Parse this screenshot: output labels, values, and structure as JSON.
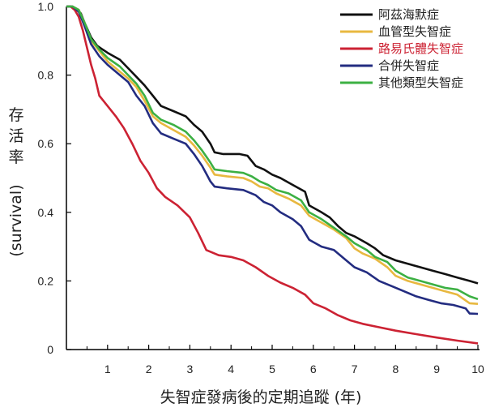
{
  "chart_data": {
    "type": "line",
    "xlabel": "失智症發病後的定期追蹤 (年)",
    "ylabel_cjk": [
      "存",
      "活",
      "率"
    ],
    "ylabel_en": "(survival)",
    "xlim": [
      0,
      10
    ],
    "ylim": [
      0,
      1.0
    ],
    "xticks": [
      "1",
      "2",
      "3",
      "4",
      "5",
      "6",
      "7",
      "8",
      "9",
      "10"
    ],
    "yticks": [
      "0",
      "0.2",
      "0.4",
      "0.6",
      "0.8",
      "1.0"
    ],
    "legend_position": "top-right",
    "series": [
      {
        "name": "阿茲海默症",
        "color": "#111111",
        "points": [
          [
            0,
            1.0
          ],
          [
            0.1,
            1.0
          ],
          [
            0.2,
            0.995
          ],
          [
            0.35,
            0.98
          ],
          [
            0.45,
            0.95
          ],
          [
            0.6,
            0.91
          ],
          [
            0.75,
            0.885
          ],
          [
            1.0,
            0.865
          ],
          [
            1.3,
            0.845
          ],
          [
            1.5,
            0.82
          ],
          [
            1.7,
            0.795
          ],
          [
            1.9,
            0.77
          ],
          [
            2.1,
            0.74
          ],
          [
            2.3,
            0.71
          ],
          [
            2.6,
            0.695
          ],
          [
            2.9,
            0.68
          ],
          [
            3.1,
            0.655
          ],
          [
            3.3,
            0.635
          ],
          [
            3.5,
            0.6
          ],
          [
            3.6,
            0.575
          ],
          [
            3.8,
            0.57
          ],
          [
            4.2,
            0.57
          ],
          [
            4.4,
            0.565
          ],
          [
            4.6,
            0.535
          ],
          [
            4.8,
            0.525
          ],
          [
            5.0,
            0.51
          ],
          [
            5.2,
            0.5
          ],
          [
            5.5,
            0.48
          ],
          [
            5.8,
            0.46
          ],
          [
            5.9,
            0.42
          ],
          [
            6.2,
            0.4
          ],
          [
            6.4,
            0.385
          ],
          [
            6.6,
            0.36
          ],
          [
            6.8,
            0.34
          ],
          [
            7.0,
            0.33
          ],
          [
            7.3,
            0.31
          ],
          [
            7.5,
            0.295
          ],
          [
            7.7,
            0.275
          ],
          [
            8.0,
            0.26
          ],
          [
            8.3,
            0.25
          ],
          [
            8.6,
            0.24
          ],
          [
            8.9,
            0.23
          ],
          [
            9.2,
            0.22
          ],
          [
            9.5,
            0.21
          ],
          [
            9.8,
            0.2
          ],
          [
            10.0,
            0.193
          ]
        ]
      },
      {
        "name": "血管型失智症",
        "color": "#e8b840",
        "points": [
          [
            0,
            1.0
          ],
          [
            0.15,
            1.0
          ],
          [
            0.3,
            0.99
          ],
          [
            0.45,
            0.95
          ],
          [
            0.6,
            0.9
          ],
          [
            0.8,
            0.87
          ],
          [
            1.0,
            0.84
          ],
          [
            1.3,
            0.81
          ],
          [
            1.5,
            0.79
          ],
          [
            1.7,
            0.765
          ],
          [
            1.9,
            0.725
          ],
          [
            2.1,
            0.68
          ],
          [
            2.3,
            0.66
          ],
          [
            2.6,
            0.64
          ],
          [
            2.9,
            0.62
          ],
          [
            3.1,
            0.595
          ],
          [
            3.3,
            0.565
          ],
          [
            3.5,
            0.53
          ],
          [
            3.6,
            0.51
          ],
          [
            3.9,
            0.505
          ],
          [
            4.3,
            0.5
          ],
          [
            4.5,
            0.49
          ],
          [
            4.7,
            0.475
          ],
          [
            4.9,
            0.47
          ],
          [
            5.1,
            0.455
          ],
          [
            5.4,
            0.44
          ],
          [
            5.7,
            0.42
          ],
          [
            5.9,
            0.39
          ],
          [
            6.2,
            0.37
          ],
          [
            6.5,
            0.35
          ],
          [
            6.8,
            0.325
          ],
          [
            7.0,
            0.295
          ],
          [
            7.2,
            0.28
          ],
          [
            7.5,
            0.265
          ],
          [
            7.8,
            0.24
          ],
          [
            8.0,
            0.215
          ],
          [
            8.3,
            0.2
          ],
          [
            8.6,
            0.19
          ],
          [
            8.9,
            0.18
          ],
          [
            9.2,
            0.17
          ],
          [
            9.5,
            0.16
          ],
          [
            9.8,
            0.135
          ],
          [
            10.0,
            0.133
          ]
        ]
      },
      {
        "name": "路易氏體失智症",
        "color": "#cc2233",
        "points": [
          [
            0,
            1.0
          ],
          [
            0.1,
            1.0
          ],
          [
            0.2,
            0.99
          ],
          [
            0.3,
            0.97
          ],
          [
            0.4,
            0.93
          ],
          [
            0.5,
            0.88
          ],
          [
            0.6,
            0.83
          ],
          [
            0.7,
            0.79
          ],
          [
            0.8,
            0.74
          ],
          [
            1.0,
            0.71
          ],
          [
            1.2,
            0.68
          ],
          [
            1.4,
            0.645
          ],
          [
            1.6,
            0.6
          ],
          [
            1.8,
            0.55
          ],
          [
            2.0,
            0.515
          ],
          [
            2.2,
            0.47
          ],
          [
            2.4,
            0.445
          ],
          [
            2.7,
            0.42
          ],
          [
            3.0,
            0.385
          ],
          [
            3.2,
            0.34
          ],
          [
            3.4,
            0.29
          ],
          [
            3.7,
            0.275
          ],
          [
            4.0,
            0.27
          ],
          [
            4.3,
            0.26
          ],
          [
            4.6,
            0.24
          ],
          [
            4.9,
            0.215
          ],
          [
            5.2,
            0.195
          ],
          [
            5.5,
            0.18
          ],
          [
            5.8,
            0.16
          ],
          [
            6.0,
            0.135
          ],
          [
            6.3,
            0.12
          ],
          [
            6.6,
            0.1
          ],
          [
            6.9,
            0.085
          ],
          [
            7.2,
            0.075
          ],
          [
            7.6,
            0.065
          ],
          [
            8.0,
            0.055
          ],
          [
            8.5,
            0.045
          ],
          [
            9.0,
            0.035
          ],
          [
            9.5,
            0.026
          ],
          [
            10.0,
            0.018
          ]
        ]
      },
      {
        "name": "合併失智症",
        "color": "#232c80",
        "points": [
          [
            0,
            1.0
          ],
          [
            0.15,
            1.0
          ],
          [
            0.3,
            0.985
          ],
          [
            0.45,
            0.94
          ],
          [
            0.6,
            0.89
          ],
          [
            0.8,
            0.855
          ],
          [
            1.0,
            0.83
          ],
          [
            1.3,
            0.8
          ],
          [
            1.5,
            0.78
          ],
          [
            1.7,
            0.74
          ],
          [
            1.9,
            0.71
          ],
          [
            2.1,
            0.66
          ],
          [
            2.3,
            0.63
          ],
          [
            2.6,
            0.615
          ],
          [
            2.9,
            0.6
          ],
          [
            3.1,
            0.57
          ],
          [
            3.3,
            0.535
          ],
          [
            3.5,
            0.49
          ],
          [
            3.6,
            0.475
          ],
          [
            3.9,
            0.47
          ],
          [
            4.3,
            0.465
          ],
          [
            4.6,
            0.45
          ],
          [
            4.8,
            0.43
          ],
          [
            5.0,
            0.42
          ],
          [
            5.2,
            0.4
          ],
          [
            5.5,
            0.38
          ],
          [
            5.7,
            0.36
          ],
          [
            5.9,
            0.32
          ],
          [
            6.2,
            0.3
          ],
          [
            6.5,
            0.29
          ],
          [
            6.8,
            0.26
          ],
          [
            7.0,
            0.24
          ],
          [
            7.3,
            0.225
          ],
          [
            7.6,
            0.2
          ],
          [
            7.9,
            0.185
          ],
          [
            8.2,
            0.17
          ],
          [
            8.5,
            0.155
          ],
          [
            8.8,
            0.145
          ],
          [
            9.1,
            0.135
          ],
          [
            9.4,
            0.13
          ],
          [
            9.7,
            0.12
          ],
          [
            9.8,
            0.105
          ],
          [
            10.0,
            0.104
          ]
        ]
      },
      {
        "name": "其他類型失智症",
        "color": "#3cb043",
        "points": [
          [
            0,
            1.0
          ],
          [
            0.15,
            1.0
          ],
          [
            0.3,
            0.99
          ],
          [
            0.45,
            0.95
          ],
          [
            0.6,
            0.905
          ],
          [
            0.8,
            0.875
          ],
          [
            1.0,
            0.85
          ],
          [
            1.3,
            0.825
          ],
          [
            1.5,
            0.8
          ],
          [
            1.7,
            0.775
          ],
          [
            1.9,
            0.74
          ],
          [
            2.1,
            0.69
          ],
          [
            2.3,
            0.67
          ],
          [
            2.6,
            0.655
          ],
          [
            2.9,
            0.635
          ],
          [
            3.1,
            0.61
          ],
          [
            3.3,
            0.58
          ],
          [
            3.5,
            0.545
          ],
          [
            3.6,
            0.525
          ],
          [
            3.9,
            0.52
          ],
          [
            4.3,
            0.515
          ],
          [
            4.5,
            0.505
          ],
          [
            4.7,
            0.49
          ],
          [
            4.9,
            0.48
          ],
          [
            5.1,
            0.465
          ],
          [
            5.4,
            0.455
          ],
          [
            5.7,
            0.435
          ],
          [
            5.9,
            0.4
          ],
          [
            6.2,
            0.38
          ],
          [
            6.5,
            0.355
          ],
          [
            6.8,
            0.33
          ],
          [
            7.0,
            0.31
          ],
          [
            7.3,
            0.29
          ],
          [
            7.5,
            0.27
          ],
          [
            7.8,
            0.255
          ],
          [
            8.0,
            0.23
          ],
          [
            8.3,
            0.21
          ],
          [
            8.6,
            0.2
          ],
          [
            8.9,
            0.19
          ],
          [
            9.2,
            0.18
          ],
          [
            9.5,
            0.175
          ],
          [
            9.8,
            0.155
          ],
          [
            10.0,
            0.147
          ]
        ]
      }
    ]
  }
}
